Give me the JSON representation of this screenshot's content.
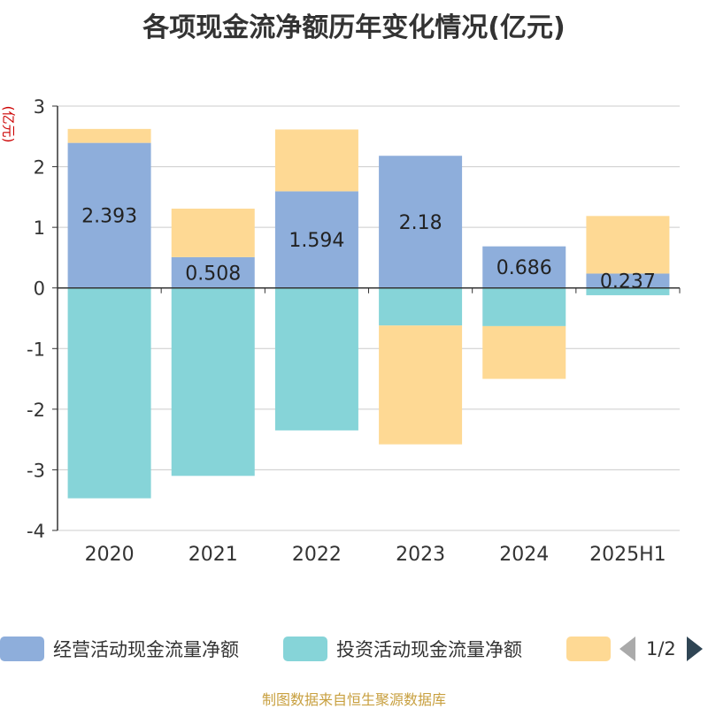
{
  "title": "各项现金流净额历年变化情况(亿元)",
  "unit_label": "(亿元)",
  "source": "制图数据来自恒生聚源数据库",
  "legend": {
    "items": [
      {
        "label": "经营活动现金流量净额",
        "color": "#8eaedb"
      },
      {
        "label": "投资活动现金流量净额",
        "color": "#86d4d8"
      },
      {
        "label": "",
        "color": "#fed994"
      }
    ],
    "page": "1/2"
  },
  "chart_data": {
    "type": "bar",
    "stacked": true,
    "categories": [
      "2020",
      "2021",
      "2022",
      "2023",
      "2024",
      "2025H1"
    ],
    "ylim": [
      -4,
      3
    ],
    "yticks": [
      3,
      2,
      1,
      0,
      -1,
      -2,
      -3,
      -4
    ],
    "grid": true,
    "legend_position": "bottom",
    "series": [
      {
        "name": "经营活动现金流量净额",
        "color": "#8eaedb",
        "values": [
          2.393,
          0.508,
          1.594,
          2.18,
          0.686,
          0.237
        ],
        "labels": [
          "2.393",
          "0.508",
          "1.594",
          "2.18",
          "0.686",
          "0.237"
        ]
      },
      {
        "name": "投资活动现金流量净额",
        "color": "#86d4d8",
        "values": [
          -3.47,
          -3.1,
          -2.35,
          -0.62,
          -0.63,
          -0.12
        ]
      },
      {
        "name": "",
        "color": "#fed994",
        "values": [
          0.23,
          0.8,
          1.02,
          -1.96,
          -0.87,
          0.95
        ]
      }
    ]
  }
}
